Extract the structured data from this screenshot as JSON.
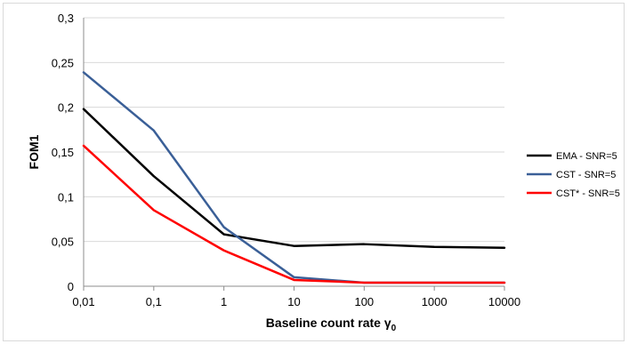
{
  "chart_data": {
    "type": "line",
    "title": "",
    "xlabel": "Baseline count rate γ",
    "xlabel_subscript": "0",
    "ylabel": "FOM1",
    "categories": [
      "0,01",
      "0,1",
      "1",
      "10",
      "100",
      "1000",
      "10000"
    ],
    "x": [
      0.01,
      0.1,
      1,
      10,
      100,
      1000,
      10000
    ],
    "ylim": [
      0,
      0.3
    ],
    "yticks": [
      0,
      0.05,
      0.1,
      0.15,
      0.2,
      0.25,
      0.3
    ],
    "ytick_labels": [
      "0",
      "0,05",
      "0,1",
      "0,15",
      "0,2",
      "0,25",
      "0,3"
    ],
    "grid": true,
    "legend_position": "right",
    "series": [
      {
        "name": "EMA - SNR=5",
        "color": "#000000",
        "values": [
          0.198,
          0.123,
          0.058,
          0.045,
          0.047,
          0.044,
          0.043
        ]
      },
      {
        "name": "CST - SNR=5",
        "color": "#3a5f97",
        "values": [
          0.239,
          0.174,
          0.066,
          0.01,
          0.004,
          0.004,
          0.004
        ]
      },
      {
        "name": "CST* - SNR=5",
        "color": "#ff0000",
        "values": [
          0.157,
          0.085,
          0.04,
          0.007,
          0.004,
          0.004,
          0.004
        ]
      }
    ]
  }
}
